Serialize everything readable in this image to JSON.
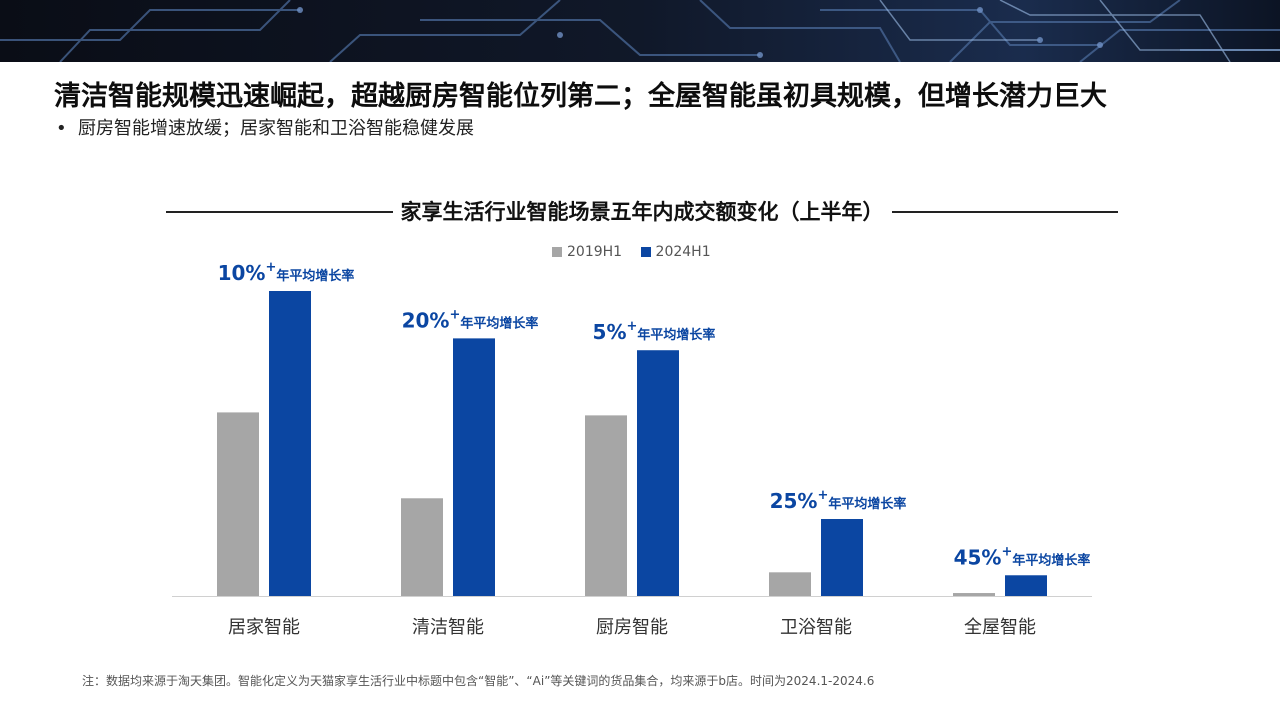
{
  "title": "清洁智能规模迅速崛起，超越厨房智能位列第二；全屋智能虽初具规模，但增长潜力巨大",
  "bullet": "厨房智能增速放缓；居家智能和卫浴智能稳健发展",
  "footnote": "注：数据均来源于淘天集团。智能化定义为天猫家享生活行业中标题中包含“智能”、“Ai”等关键词的货品集合，均来源于b店。时间为2024.1-2024.6",
  "colors": {
    "series_2019": "#a6a6a6",
    "series_2024": "#0b46a2",
    "annotation": "#0b46a2"
  },
  "chart_data": {
    "type": "bar",
    "title": "家享生活行业智能场景五年内成交额变化（上半年）",
    "categories": [
      "居家智能",
      "清洁智能",
      "厨房智能",
      "卫浴智能",
      "全屋智能"
    ],
    "series": [
      {
        "name": "2019H1",
        "values": [
          62,
          33,
          61,
          8,
          1
        ]
      },
      {
        "name": "2024H1",
        "values": [
          103,
          87,
          83,
          26,
          7
        ]
      }
    ],
    "annotations": [
      {
        "rate": "10%",
        "sup": "+",
        "label": "年平均增长率"
      },
      {
        "rate": "20%",
        "sup": "+",
        "label": "年平均增长率"
      },
      {
        "rate": "5%",
        "sup": "+",
        "label": "年平均增长率"
      },
      {
        "rate": "25%",
        "sup": "+",
        "label": "年平均增长率"
      },
      {
        "rate": "45%",
        "sup": "+",
        "label": "年平均增长率"
      }
    ],
    "ylim": [
      0,
      103
    ],
    "legend_position": "top-center",
    "grid": false,
    "y_axis_visible": false
  }
}
